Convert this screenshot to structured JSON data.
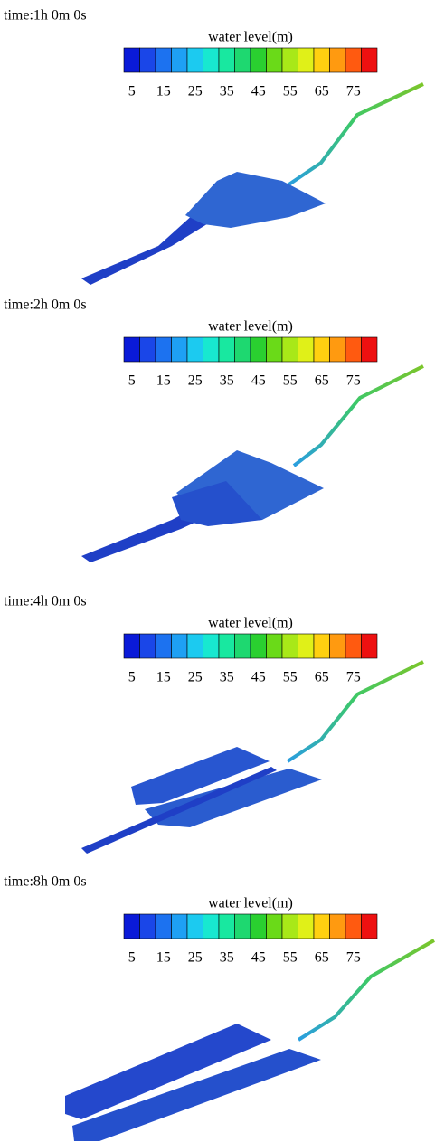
{
  "panels": [
    {
      "time": "time:1h  0m  0s",
      "legend": {
        "title": "water level(m)",
        "ticks": [
          "5",
          "15",
          "25",
          "35",
          "45",
          "55",
          "65",
          "75"
        ]
      }
    },
    {
      "time": "time:2h  0m  0s",
      "legend": {
        "title": "water level(m)",
        "ticks": [
          "5",
          "15",
          "25",
          "35",
          "45",
          "55",
          "65",
          "75"
        ]
      }
    },
    {
      "time": "time:4h  0m  0s",
      "legend": {
        "title": "water level(m)",
        "ticks": [
          "5",
          "15",
          "25",
          "35",
          "45",
          "55",
          "65",
          "75"
        ]
      }
    },
    {
      "time": "time:8h  0m  0s",
      "legend": {
        "title": "water level(m)",
        "ticks": [
          "5",
          "15",
          "25",
          "35",
          "45",
          "55",
          "65",
          "75"
        ]
      }
    }
  ]
}
